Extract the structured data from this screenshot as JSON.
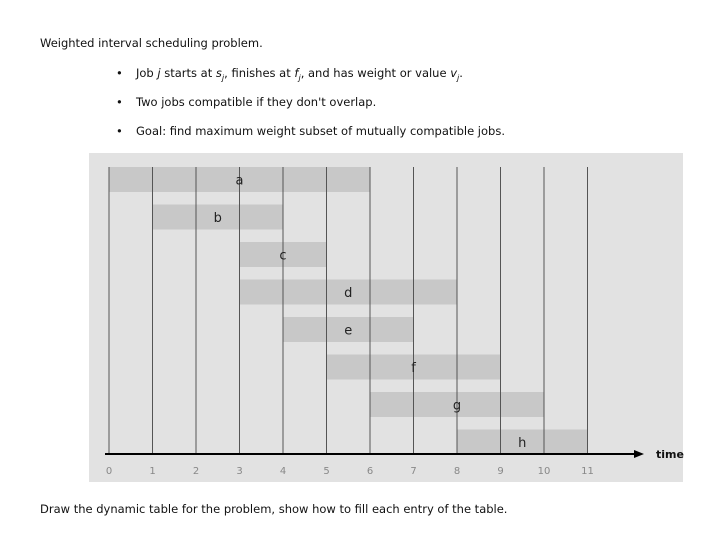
{
  "document": {
    "heading": "Weighted interval scheduling problem.",
    "bullets": [
      {
        "pre": "Job ",
        "j": "j",
        "mid1": " starts at ",
        "s": "s",
        "sub1": "j",
        "mid2": ", finishes at ",
        "f": "f",
        "sub2": "j",
        "mid3": ", and has weight or value ",
        "v": "v",
        "sub3": "j",
        "end": "."
      },
      {
        "text": "Two jobs compatible if they don't overlap."
      },
      {
        "text": "Goal:  find maximum weight subset of mutually compatible jobs."
      }
    ],
    "bullet_symbol": "•",
    "footer": "Draw the dynamic table for the problem, show how to fill each entry of the table."
  },
  "chart_data": {
    "type": "gantt",
    "jobs": [
      {
        "label": "a",
        "start": 0,
        "finish": 6
      },
      {
        "label": "b",
        "start": 1,
        "finish": 4
      },
      {
        "label": "c",
        "start": 3,
        "finish": 5
      },
      {
        "label": "d",
        "start": 3,
        "finish": 8
      },
      {
        "label": "e",
        "start": 4,
        "finish": 7
      },
      {
        "label": "f",
        "start": 5,
        "finish": 9
      },
      {
        "label": "g",
        "start": 6,
        "finish": 10
      },
      {
        "label": "h",
        "start": 8,
        "finish": 11
      }
    ],
    "x_ticks": [
      "0",
      "1",
      "2",
      "3",
      "4",
      "5",
      "6",
      "7",
      "8",
      "9",
      "10",
      "11"
    ],
    "xlabel": "time",
    "xlim": [
      0,
      11
    ],
    "grid": true,
    "colors": {
      "background": "#e2e2e2",
      "bar": "#c8c8c8",
      "gridline": "#555555",
      "axis": "#000000",
      "tick_text": "#888888"
    }
  }
}
